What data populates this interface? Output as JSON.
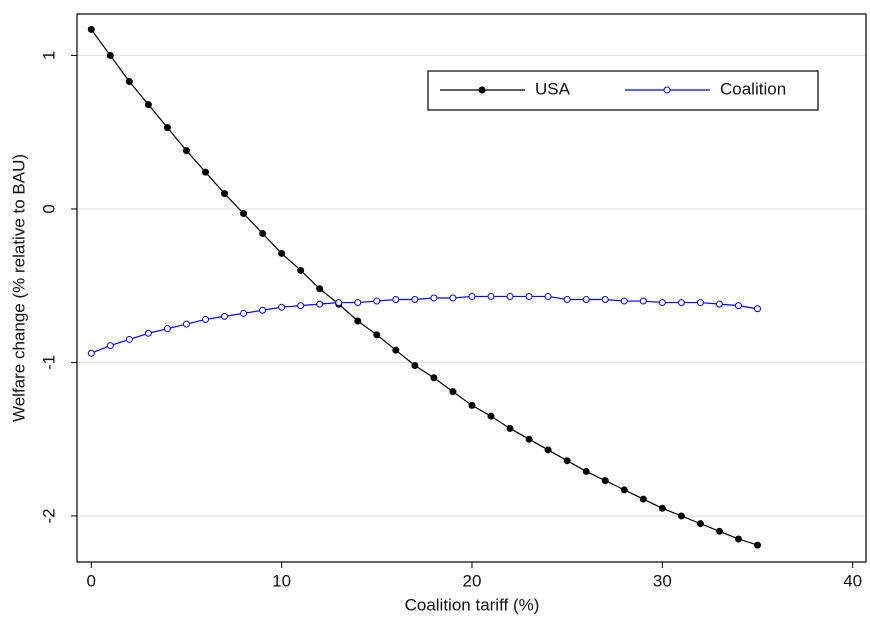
{
  "chart_data": {
    "type": "line",
    "xlabel": "Coalition tariff (%)",
    "ylabel": "Welfare change (% relative to BAU)",
    "x": [
      0,
      1,
      2,
      3,
      4,
      5,
      6,
      7,
      8,
      9,
      10,
      11,
      12,
      13,
      14,
      15,
      16,
      17,
      18,
      19,
      20,
      21,
      22,
      23,
      24,
      25,
      26,
      27,
      28,
      29,
      30,
      31,
      32,
      33,
      34,
      35
    ],
    "series": [
      {
        "name": "USA",
        "color": "#000000",
        "marker": "filled",
        "values": [
          1.17,
          1.0,
          0.83,
          0.68,
          0.53,
          0.38,
          0.24,
          0.1,
          -0.03,
          -0.16,
          -0.29,
          -0.4,
          -0.52,
          -0.62,
          -0.73,
          -0.82,
          -0.92,
          -1.02,
          -1.1,
          -1.19,
          -1.28,
          -1.35,
          -1.43,
          -1.5,
          -1.57,
          -1.64,
          -1.71,
          -1.77,
          -1.83,
          -1.89,
          -1.95,
          -2.0,
          -2.05,
          -2.1,
          -2.15,
          -2.19
        ]
      },
      {
        "name": "Coalition",
        "color": "#0000ff",
        "marker": "open",
        "values": [
          -0.94,
          -0.89,
          -0.85,
          -0.81,
          -0.78,
          -0.75,
          -0.72,
          -0.7,
          -0.68,
          -0.66,
          -0.64,
          -0.63,
          -0.62,
          -0.61,
          -0.61,
          -0.6,
          -0.59,
          -0.59,
          -0.58,
          -0.58,
          -0.57,
          -0.57,
          -0.57,
          -0.57,
          -0.57,
          -0.59,
          -0.59,
          -0.59,
          -0.6,
          -0.6,
          -0.61,
          -0.61,
          -0.61,
          -0.62,
          -0.63,
          -0.65
        ]
      }
    ],
    "xlim": [
      -0.75,
      40.7
    ],
    "xticks": [
      0,
      10,
      20,
      30,
      40
    ],
    "ylim": [
      -2.3,
      1.27
    ],
    "yticks": [
      -2,
      -1,
      0,
      1
    ],
    "grid": true,
    "legend": "top-right"
  }
}
